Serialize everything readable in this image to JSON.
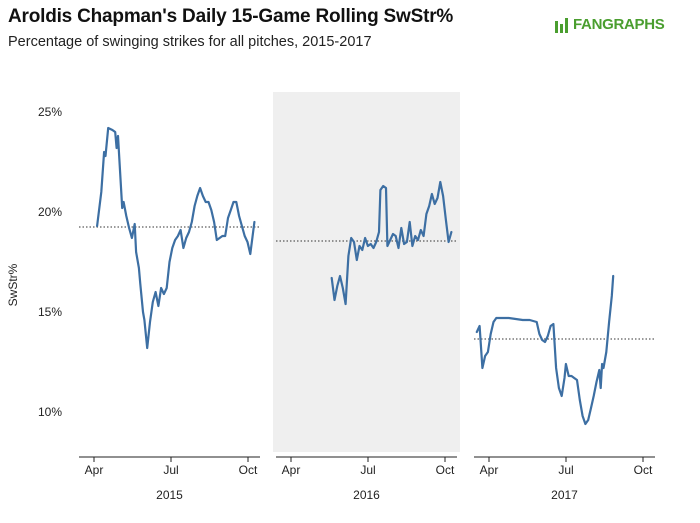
{
  "header": {
    "title": "Aroldis Chapman's Daily 15-Game Rolling SwStr%",
    "subtitle": "Percentage of swinging strikes for all pitches, 2015-2017",
    "logo": "FANGRAPHS",
    "logo_icon": "fangraphs-batter-icon"
  },
  "colors": {
    "line": "#3d6fa3",
    "shade": "#efefef",
    "logo": "#4a9e2f"
  },
  "chart_data": {
    "type": "line",
    "ylabel": "SwStr%",
    "ylim": [
      8,
      26
    ],
    "yticks": [
      10,
      15,
      20,
      25
    ],
    "ytick_labels": [
      "10%",
      "15%",
      "20%",
      "25%"
    ],
    "xtick_labels": [
      "Apr",
      "Jul",
      "Oct"
    ],
    "facets": [
      {
        "label": "2015",
        "shaded": false,
        "mean": 19.25,
        "values": [
          [
            13,
            19.3
          ],
          [
            16,
            21
          ],
          [
            18,
            23
          ],
          [
            19,
            22.8
          ],
          [
            21,
            24.2
          ],
          [
            24,
            24.1
          ],
          [
            26,
            24
          ],
          [
            27,
            23.2
          ],
          [
            28,
            23.8
          ],
          [
            29,
            22.6
          ],
          [
            31,
            20.2
          ],
          [
            32,
            20.5
          ],
          [
            34,
            19.8
          ],
          [
            36,
            19.2
          ],
          [
            38,
            18.7
          ],
          [
            40,
            19.4
          ],
          [
            41,
            18
          ],
          [
            43,
            17.2
          ],
          [
            44,
            16.4
          ],
          [
            46,
            15
          ],
          [
            47,
            14.6
          ],
          [
            49,
            13.2
          ],
          [
            51,
            14.5
          ],
          [
            53,
            15.5
          ],
          [
            55,
            16
          ],
          [
            57,
            15.3
          ],
          [
            59,
            16.2
          ],
          [
            61,
            15.9
          ],
          [
            63,
            16.2
          ],
          [
            65,
            17.5
          ],
          [
            67,
            18.2
          ],
          [
            69,
            18.6
          ],
          [
            71,
            18.8
          ],
          [
            73,
            19.1
          ],
          [
            75,
            18.2
          ],
          [
            77,
            18.7
          ],
          [
            79,
            19
          ],
          [
            81,
            19.5
          ],
          [
            83,
            20.3
          ],
          [
            85,
            20.8
          ],
          [
            87,
            21.2
          ],
          [
            89,
            20.8
          ],
          [
            91,
            20.5
          ],
          [
            93,
            20.5
          ],
          [
            95,
            20.1
          ],
          [
            97,
            19.5
          ],
          [
            99,
            18.6
          ],
          [
            101,
            18.7
          ],
          [
            103,
            18.8
          ],
          [
            105,
            18.8
          ],
          [
            107,
            19.7
          ],
          [
            109,
            20.1
          ],
          [
            111,
            20.5
          ],
          [
            113,
            20.5
          ],
          [
            115,
            19.8
          ],
          [
            117,
            19.3
          ],
          [
            119,
            18.8
          ],
          [
            121,
            18.5
          ],
          [
            123,
            17.9
          ],
          [
            126,
            19.5
          ]
        ]
      },
      {
        "label": "2016",
        "shaded": true,
        "mean": 18.55,
        "values": [
          [
            40,
            16.7
          ],
          [
            42,
            15.6
          ],
          [
            44,
            16.3
          ],
          [
            46,
            16.8
          ],
          [
            48,
            16.2
          ],
          [
            50,
            15.4
          ],
          [
            52,
            17.8
          ],
          [
            54,
            18.7
          ],
          [
            56,
            18.5
          ],
          [
            58,
            17.6
          ],
          [
            60,
            18.3
          ],
          [
            62,
            18.1
          ],
          [
            64,
            18.7
          ],
          [
            66,
            18.3
          ],
          [
            68,
            18.4
          ],
          [
            70,
            18.2
          ],
          [
            72,
            18.5
          ],
          [
            74,
            19
          ],
          [
            75,
            21.1
          ],
          [
            77,
            21.3
          ],
          [
            79,
            21.2
          ],
          [
            80,
            18.3
          ],
          [
            82,
            18.6
          ],
          [
            84,
            18.9
          ],
          [
            86,
            18.8
          ],
          [
            88,
            18.2
          ],
          [
            90,
            19.2
          ],
          [
            92,
            18.4
          ],
          [
            94,
            18.5
          ],
          [
            96,
            19.5
          ],
          [
            98,
            18.3
          ],
          [
            100,
            18.8
          ],
          [
            102,
            18.6
          ],
          [
            104,
            19.1
          ],
          [
            106,
            18.8
          ],
          [
            108,
            19.9
          ],
          [
            110,
            20.3
          ],
          [
            112,
            20.9
          ],
          [
            114,
            20.4
          ],
          [
            116,
            20.7
          ],
          [
            118,
            21.5
          ],
          [
            120,
            20.8
          ],
          [
            122,
            19.6
          ],
          [
            124,
            18.5
          ],
          [
            126,
            19
          ]
        ]
      },
      {
        "label": "2017",
        "shaded": false,
        "mean": 13.65,
        "values": [
          [
            2,
            14
          ],
          [
            4,
            14.3
          ],
          [
            6,
            12.2
          ],
          [
            8,
            12.8
          ],
          [
            10,
            13
          ],
          [
            12,
            13.9
          ],
          [
            14,
            14.5
          ],
          [
            16,
            14.7
          ],
          [
            20,
            14.7
          ],
          [
            25,
            14.7
          ],
          [
            30,
            14.65
          ],
          [
            35,
            14.6
          ],
          [
            40,
            14.6
          ],
          [
            45,
            14.5
          ],
          [
            47,
            13.9
          ],
          [
            49,
            13.6
          ],
          [
            51,
            13.5
          ],
          [
            53,
            13.8
          ],
          [
            55,
            14.3
          ],
          [
            57,
            14.4
          ],
          [
            59,
            12.2
          ],
          [
            61,
            11.2
          ],
          [
            63,
            10.8
          ],
          [
            65,
            11.7
          ],
          [
            66,
            12.4
          ],
          [
            68,
            11.8
          ],
          [
            70,
            11.8
          ],
          [
            72,
            11.7
          ],
          [
            74,
            11.6
          ],
          [
            76,
            10.6
          ],
          [
            78,
            9.8
          ],
          [
            80,
            9.4
          ],
          [
            82,
            9.6
          ],
          [
            84,
            10.2
          ],
          [
            86,
            10.8
          ],
          [
            88,
            11.5
          ],
          [
            90,
            12.1
          ],
          [
            91,
            11.2
          ],
          [
            92,
            12.4
          ],
          [
            93,
            12.2
          ],
          [
            95,
            13
          ],
          [
            97,
            14.5
          ],
          [
            99,
            15.8
          ],
          [
            100,
            16.8
          ]
        ]
      }
    ]
  }
}
